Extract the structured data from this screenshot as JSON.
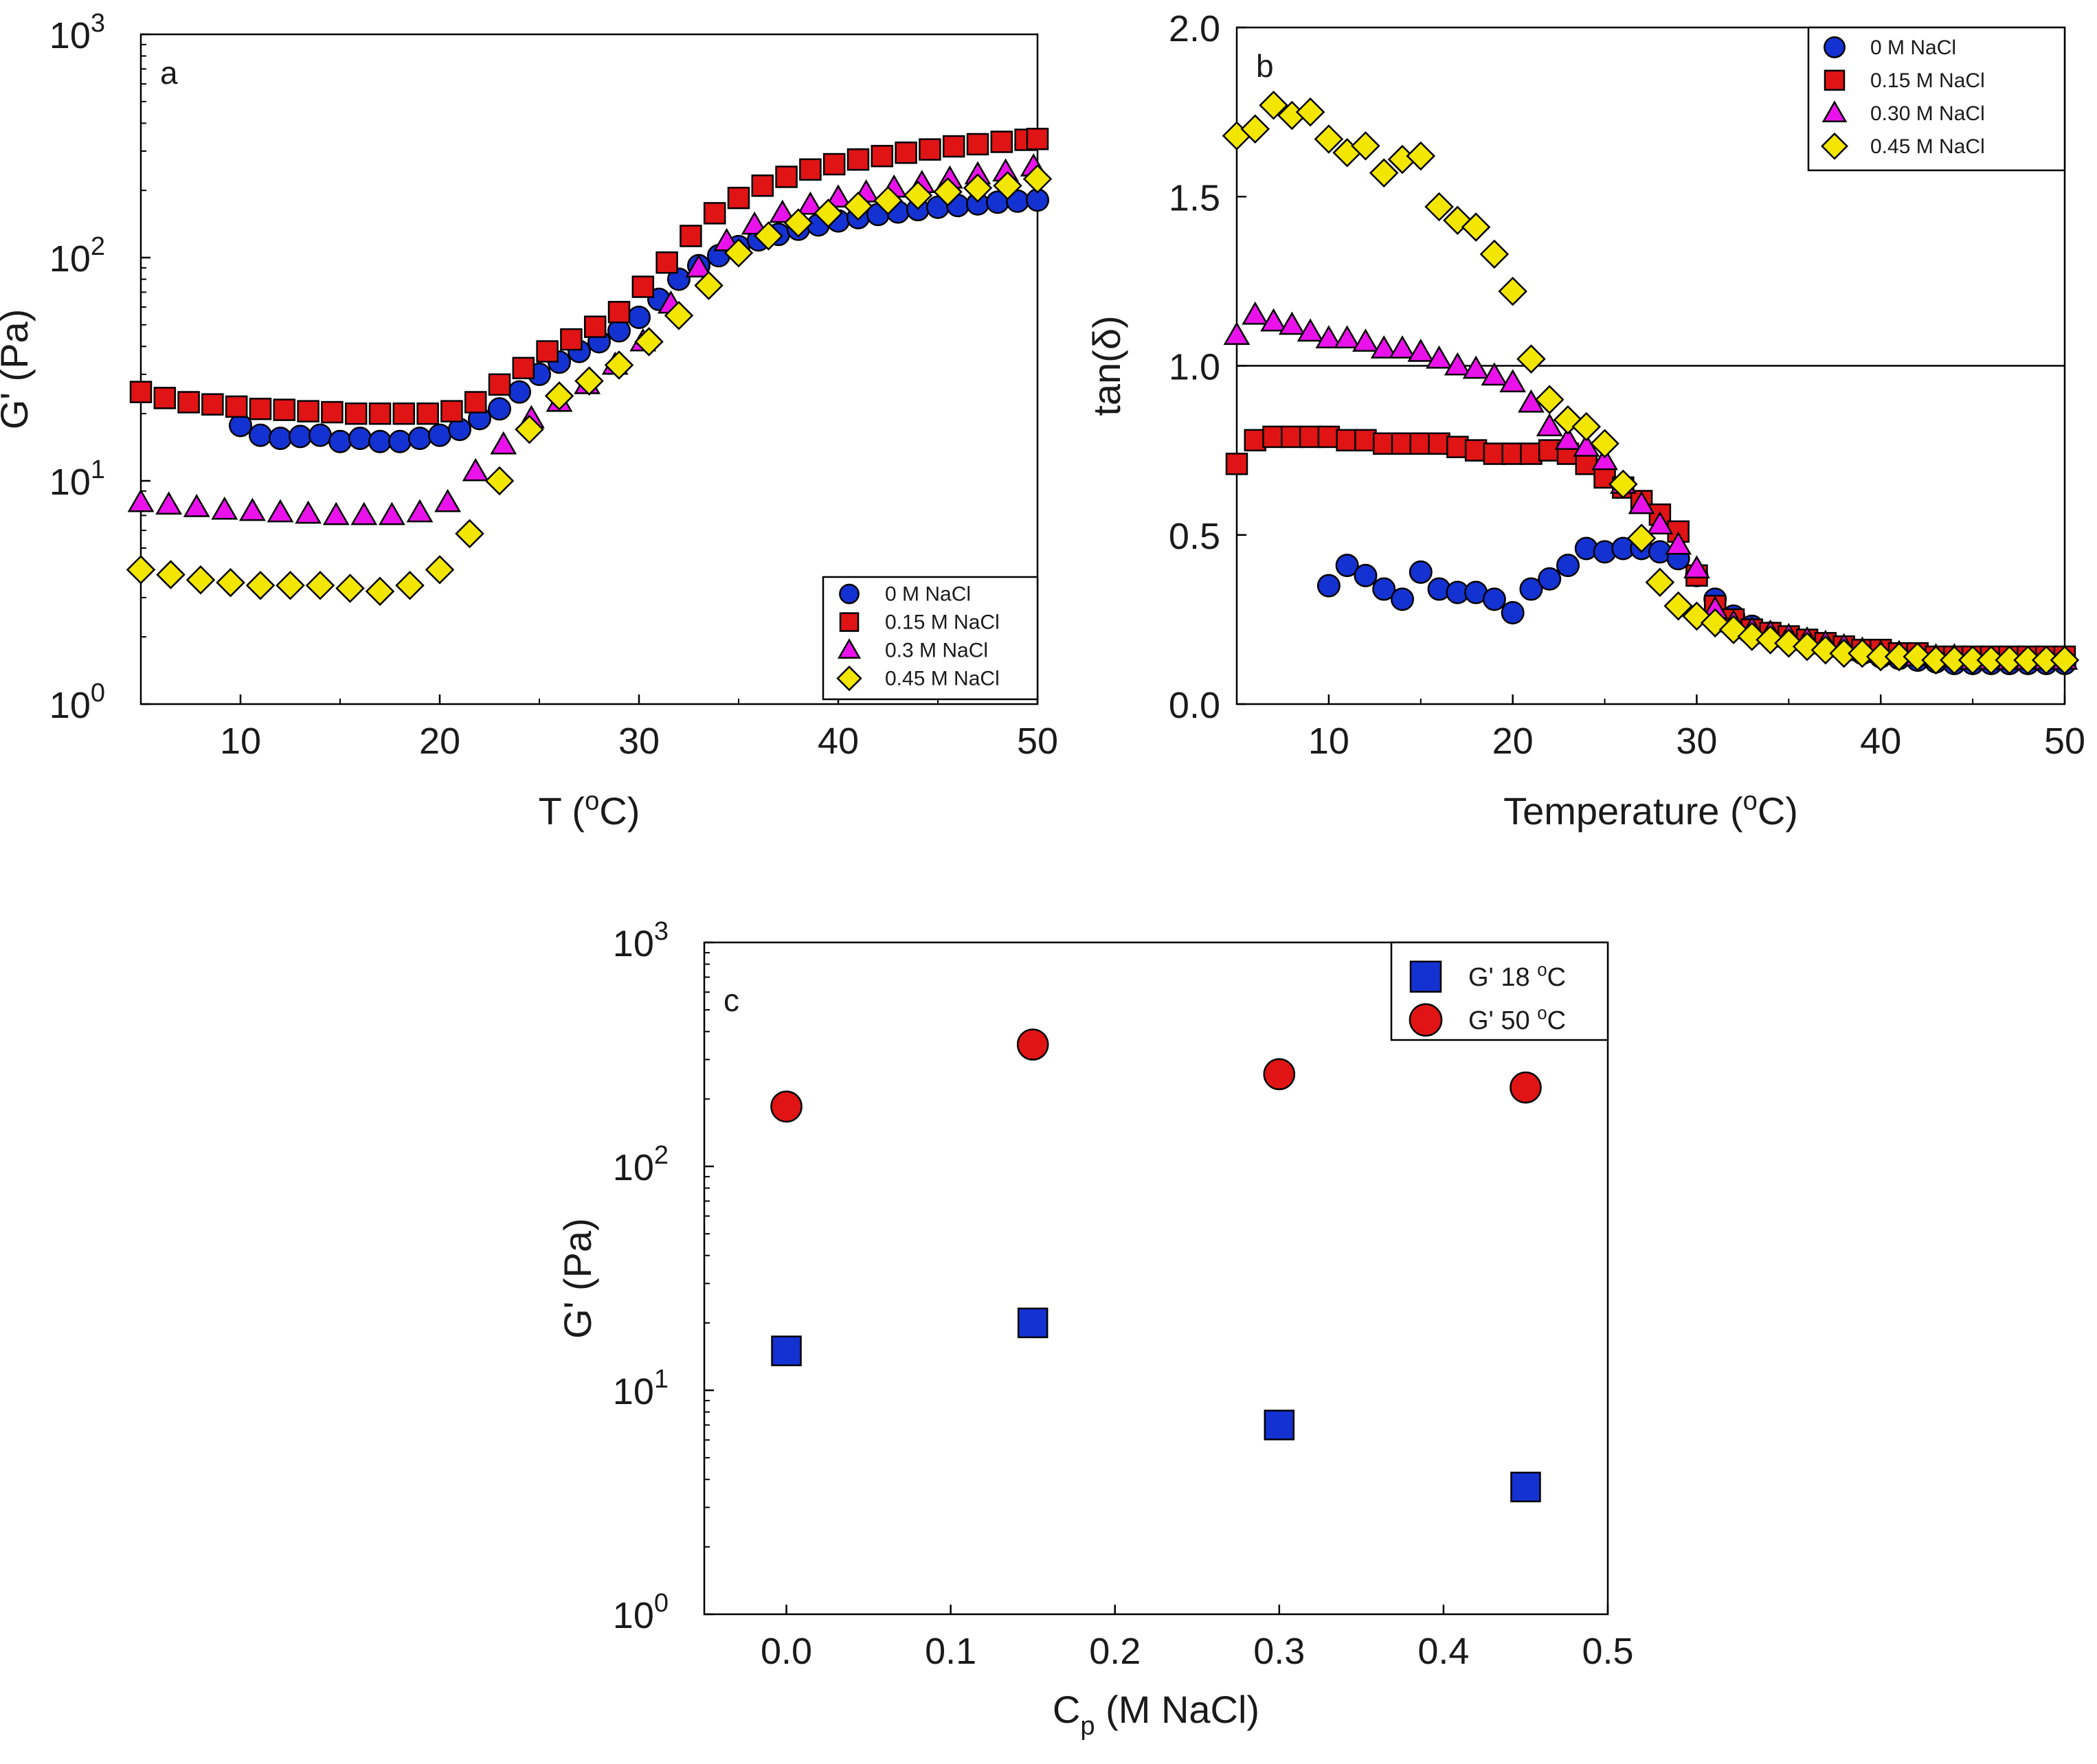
{
  "chart_data": [
    {
      "id": "a",
      "type": "scatter",
      "panel_label": "a",
      "xlabel": "T (°C)",
      "xlabel_parts": {
        "pre": "T (",
        "sup": "o",
        "post": "C)"
      },
      "ylabel": "G' (Pa)",
      "xscale": "linear",
      "yscale": "log",
      "xlim": [
        5,
        50
      ],
      "ylim": [
        1,
        1000
      ],
      "x_ticks": [
        10,
        20,
        30,
        40,
        50
      ],
      "y_ticks": [
        {
          "value": 1,
          "base": "10",
          "exp": "0"
        },
        {
          "value": 10,
          "base": "10",
          "exp": "1"
        },
        {
          "value": 100,
          "base": "10",
          "exp": "2"
        },
        {
          "value": 1000,
          "base": "10",
          "exp": "3"
        }
      ],
      "legend_position": "bottom-right",
      "series": [
        {
          "name": "0 M NaCl",
          "marker": "circle",
          "color": "#1432d2",
          "x": [
            10,
            11,
            12,
            13,
            14,
            15,
            16,
            17,
            18,
            19,
            20,
            21,
            22,
            23,
            24,
            25,
            26,
            27,
            28,
            29,
            30,
            31,
            32,
            33,
            34,
            35,
            36,
            37,
            38,
            39,
            40,
            41,
            42,
            43,
            44,
            45,
            46,
            47,
            48,
            49,
            50
          ],
          "y": [
            17.7,
            16.0,
            15.5,
            15.8,
            16.0,
            15.0,
            15.5,
            15.0,
            15.0,
            15.5,
            16.0,
            17.0,
            19.0,
            21.0,
            25.0,
            30.0,
            34.0,
            38.0,
            42.0,
            47.0,
            54.0,
            65.0,
            80.0,
            92.0,
            102.0,
            112.0,
            120.0,
            127.0,
            134.0,
            140.0,
            146.0,
            151.0,
            156.0,
            160.0,
            164.0,
            168.0,
            171.0,
            174.0,
            177.0,
            179.0,
            181.0
          ]
        },
        {
          "name": "0.15 M NaCl",
          "marker": "square",
          "color": "#e01414",
          "x": [
            5,
            6.2,
            7.4,
            8.6,
            9.8,
            11,
            12.2,
            13.4,
            14.6,
            15.8,
            17,
            18.2,
            19.4,
            20.6,
            21.8,
            23,
            24.2,
            25.4,
            26.6,
            27.8,
            29,
            30.2,
            31.4,
            32.6,
            33.8,
            35,
            36.2,
            37.4,
            38.6,
            39.8,
            41,
            42.2,
            43.4,
            44.6,
            45.8,
            47,
            48.2,
            49.4,
            50
          ],
          "y": [
            25.0,
            23.5,
            22.5,
            22.0,
            21.5,
            21.0,
            20.8,
            20.5,
            20.3,
            20.0,
            20.0,
            20.0,
            20.0,
            20.5,
            22.5,
            27.0,
            32.0,
            38.0,
            43.0,
            49.0,
            57.0,
            74.0,
            95.0,
            125.0,
            158.0,
            185.0,
            210.0,
            230.0,
            248.0,
            262.0,
            275.0,
            285.0,
            295.0,
            305.0,
            315.0,
            322.0,
            330.0,
            337.0,
            340.0
          ]
        },
        {
          "name": "0.3 M NaCl",
          "marker": "triangle",
          "color": "#ea12ea",
          "x": [
            5,
            6.4,
            7.8,
            9.2,
            10.6,
            12,
            13.4,
            14.8,
            16.2,
            17.6,
            19,
            20.4,
            21.8,
            23.2,
            24.6,
            26,
            27.4,
            28.8,
            30.2,
            31.6,
            33,
            34.4,
            35.8,
            37.2,
            38.6,
            40,
            41.4,
            42.8,
            44.2,
            45.6,
            47,
            48.4,
            49.8
          ],
          "y": [
            8.0,
            7.8,
            7.6,
            7.4,
            7.3,
            7.2,
            7.1,
            7.0,
            7.0,
            7.0,
            7.2,
            8.0,
            11.0,
            14.5,
            19.0,
            22.5,
            27.0,
            33.0,
            42.0,
            62.0,
            90.0,
            118.0,
            140.0,
            158.0,
            172.0,
            185.0,
            195.0,
            205.0,
            215.0,
            225.0,
            235.0,
            242.0,
            255.0
          ]
        },
        {
          "name": "0.45 M NaCl",
          "marker": "diamond",
          "color": "#f2e600",
          "x": [
            5,
            6.5,
            8,
            9.5,
            11,
            12.5,
            14,
            15.5,
            17,
            18.5,
            20,
            21.5,
            23,
            24.5,
            26,
            27.5,
            29,
            30.5,
            32,
            33.5,
            35,
            36.5,
            38,
            39.5,
            41,
            42.5,
            44,
            45.5,
            47,
            48.5,
            50
          ],
          "y": [
            4.0,
            3.8,
            3.6,
            3.5,
            3.4,
            3.4,
            3.4,
            3.3,
            3.2,
            3.4,
            4.0,
            5.8,
            10.0,
            17.0,
            24.0,
            28.0,
            33.0,
            42.0,
            55.0,
            75.0,
            105.0,
            125.0,
            143.0,
            158.0,
            170.0,
            180.0,
            190.0,
            197.0,
            205.0,
            210.0,
            225.0
          ]
        }
      ]
    },
    {
      "id": "b",
      "type": "scatter",
      "panel_label": "b",
      "xlabel": "Temperature (°C)",
      "xlabel_parts": {
        "pre": "Temperature (",
        "sup": "o",
        "post": "C)"
      },
      "ylabel": "tan(δ)",
      "xscale": "linear",
      "yscale": "linear",
      "xlim": [
        5,
        50
      ],
      "ylim": [
        0,
        2.0
      ],
      "x_ticks": [
        10,
        20,
        30,
        40,
        50
      ],
      "y_ticks": [
        "0.0",
        "0.5",
        "1.0",
        "1.5",
        "2.0"
      ],
      "reference_line": 1.0,
      "legend_position": "top-right",
      "series": [
        {
          "name": "0 M NaCl",
          "marker": "circle",
          "color": "#1432d2",
          "x": [
            10,
            11,
            12,
            13,
            14,
            15,
            16,
            17,
            18,
            19,
            20,
            21,
            22,
            23,
            24,
            25,
            26,
            27,
            28,
            29,
            30,
            31,
            32,
            33,
            34,
            35,
            36,
            37,
            38,
            39,
            40,
            41,
            42,
            43,
            44,
            45,
            46,
            47,
            48,
            49,
            50
          ],
          "y": [
            0.35,
            0.41,
            0.38,
            0.34,
            0.31,
            0.39,
            0.34,
            0.33,
            0.33,
            0.31,
            0.27,
            0.34,
            0.37,
            0.41,
            0.46,
            0.45,
            0.46,
            0.46,
            0.45,
            0.43,
            0.38,
            0.31,
            0.26,
            0.23,
            0.21,
            0.19,
            0.18,
            0.17,
            0.16,
            0.15,
            0.14,
            0.135,
            0.13,
            0.125,
            0.12,
            0.12,
            0.12,
            0.12,
            0.12,
            0.12,
            0.12
          ]
        },
        {
          "name": "0.15 M NaCl",
          "marker": "square",
          "color": "#e01414",
          "x": [
            5,
            6,
            7,
            8,
            9,
            10,
            11,
            12,
            13,
            14,
            15,
            16,
            17,
            18,
            19,
            20,
            21,
            22,
            23,
            24,
            25,
            26,
            27,
            28,
            29,
            30,
            31,
            32,
            33,
            34,
            35,
            36,
            37,
            38,
            39,
            40,
            41,
            42,
            43,
            44,
            45,
            46,
            47,
            48,
            49,
            50
          ],
          "y": [
            0.71,
            0.78,
            0.79,
            0.79,
            0.79,
            0.79,
            0.78,
            0.78,
            0.77,
            0.77,
            0.77,
            0.77,
            0.76,
            0.75,
            0.74,
            0.74,
            0.74,
            0.75,
            0.74,
            0.71,
            0.67,
            0.64,
            0.6,
            0.56,
            0.51,
            0.38,
            0.29,
            0.25,
            0.22,
            0.21,
            0.2,
            0.19,
            0.18,
            0.17,
            0.16,
            0.16,
            0.15,
            0.15,
            0.14,
            0.14,
            0.14,
            0.14,
            0.14,
            0.14,
            0.14,
            0.14
          ]
        },
        {
          "name": "0.30 M NaCl",
          "marker": "triangle",
          "color": "#ea12ea",
          "x": [
            5,
            6,
            7,
            8,
            9,
            10,
            11,
            12,
            13,
            14,
            15,
            16,
            17,
            18,
            19,
            20,
            21,
            22,
            23,
            24,
            25,
            26,
            27,
            28,
            29,
            30,
            31,
            32,
            33,
            34,
            35,
            36,
            37,
            38,
            39,
            40,
            41,
            42,
            43,
            44,
            45,
            46,
            47,
            48,
            49,
            50
          ],
          "y": [
            1.09,
            1.15,
            1.13,
            1.12,
            1.1,
            1.08,
            1.08,
            1.07,
            1.05,
            1.05,
            1.04,
            1.02,
            1.0,
            0.99,
            0.97,
            0.95,
            0.89,
            0.82,
            0.78,
            0.76,
            0.72,
            0.65,
            0.59,
            0.53,
            0.47,
            0.4,
            0.28,
            0.24,
            0.22,
            0.21,
            0.2,
            0.19,
            0.18,
            0.17,
            0.16,
            0.15,
            0.15,
            0.14,
            0.14,
            0.14,
            0.13,
            0.13,
            0.13,
            0.13,
            0.13,
            0.13
          ]
        },
        {
          "name": "0.45 M NaCl",
          "marker": "diamond",
          "color": "#f2e600",
          "x": [
            5,
            6,
            7,
            8,
            9,
            10,
            11,
            12,
            13,
            14,
            15,
            16,
            17,
            18,
            19,
            20,
            21,
            22,
            23,
            24,
            25,
            26,
            27,
            28,
            29,
            30,
            31,
            32,
            33,
            34,
            35,
            36,
            37,
            38,
            39,
            40,
            41,
            42,
            43,
            44,
            45,
            46,
            47,
            48,
            49,
            50
          ],
          "y": [
            1.68,
            1.7,
            1.77,
            1.74,
            1.75,
            1.67,
            1.63,
            1.65,
            1.57,
            1.61,
            1.62,
            1.47,
            1.43,
            1.41,
            1.33,
            1.22,
            1.02,
            0.9,
            0.84,
            0.82,
            0.77,
            0.65,
            0.49,
            0.36,
            0.29,
            0.26,
            0.24,
            0.22,
            0.2,
            0.19,
            0.18,
            0.17,
            0.16,
            0.15,
            0.15,
            0.14,
            0.14,
            0.14,
            0.13,
            0.13,
            0.13,
            0.13,
            0.13,
            0.13,
            0.13,
            0.13
          ]
        }
      ]
    },
    {
      "id": "c",
      "type": "scatter",
      "panel_label": "c",
      "xlabel": "Cp (M NaCl)",
      "xlabel_parts": {
        "pre": "C",
        "sub": "p",
        "post": " (M NaCl)"
      },
      "ylabel": "G' (Pa)",
      "xscale": "linear",
      "yscale": "log",
      "xlim": [
        -0.05,
        0.5
      ],
      "ylim": [
        1,
        1000
      ],
      "x_ticks": [
        "0.0",
        "0.1",
        "0.2",
        "0.3",
        "0.4",
        "0.5"
      ],
      "y_ticks": [
        {
          "value": 1,
          "base": "10",
          "exp": "0"
        },
        {
          "value": 10,
          "base": "10",
          "exp": "1"
        },
        {
          "value": 100,
          "base": "10",
          "exp": "2"
        },
        {
          "value": 1000,
          "base": "10",
          "exp": "3"
        }
      ],
      "legend_position": "top-right",
      "series": [
        {
          "name": "G' 18 °C",
          "name_parts": {
            "pre": "G' 18 ",
            "sup": "o",
            "post": "C"
          },
          "marker": "square",
          "color": "#1432d2",
          "x": [
            0,
            0.15,
            0.3,
            0.45
          ],
          "y": [
            15.0,
            20.0,
            7.0,
            3.7
          ]
        },
        {
          "name": "G' 50 °C",
          "name_parts": {
            "pre": "G' 50 ",
            "sup": "o",
            "post": "C"
          },
          "marker": "circle",
          "color": "#e01414",
          "x": [
            0,
            0.15,
            0.3,
            0.45
          ],
          "y": [
            185.0,
            350.0,
            258.0,
            225.0
          ]
        }
      ]
    }
  ]
}
